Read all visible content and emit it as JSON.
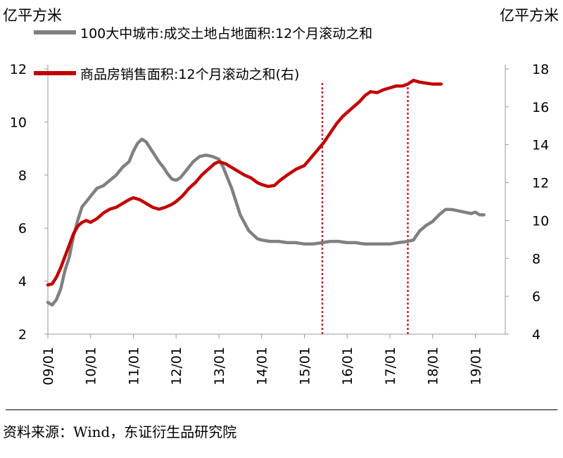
{
  "unit_left": "亿平方米",
  "unit_right": "亿平方米",
  "source": "资料来源：Wind，东证衍生品研究院",
  "chart_data": {
    "type": "line",
    "x_ticks": [
      "09/01",
      "10/01",
      "11/01",
      "12/01",
      "13/01",
      "14/01",
      "15/01",
      "16/01",
      "17/01",
      "18/01",
      "19/01"
    ],
    "y_left": {
      "ticks": [
        "2",
        "4",
        "6",
        "8",
        "10",
        "12"
      ],
      "range": [
        2,
        12
      ]
    },
    "y_right": {
      "ticks": [
        "4",
        "6",
        "8",
        "10",
        "12",
        "14",
        "16",
        "18"
      ],
      "range": [
        4,
        18
      ]
    },
    "vlines": [
      {
        "x": 2015.42,
        "color": "#d0212b"
      },
      {
        "x": 2017.42,
        "color": "#d0212b"
      }
    ],
    "series": [
      {
        "name": "100大中城市:成交土地占地面积:12个月滚动之和",
        "color": "#808080",
        "axis": "left",
        "points": [
          [
            2009.0,
            3.2
          ],
          [
            2009.1,
            3.1
          ],
          [
            2009.2,
            3.3
          ],
          [
            2009.3,
            3.7
          ],
          [
            2009.4,
            4.4
          ],
          [
            2009.5,
            4.9
          ],
          [
            2009.6,
            5.7
          ],
          [
            2009.7,
            6.3
          ],
          [
            2009.8,
            6.8
          ],
          [
            2009.9,
            7.0
          ],
          [
            2010.0,
            7.2
          ],
          [
            2010.15,
            7.5
          ],
          [
            2010.3,
            7.6
          ],
          [
            2010.45,
            7.8
          ],
          [
            2010.6,
            8.0
          ],
          [
            2010.75,
            8.3
          ],
          [
            2010.9,
            8.5
          ],
          [
            2011.0,
            8.9
          ],
          [
            2011.1,
            9.2
          ],
          [
            2011.2,
            9.35
          ],
          [
            2011.3,
            9.25
          ],
          [
            2011.4,
            9.0
          ],
          [
            2011.5,
            8.75
          ],
          [
            2011.6,
            8.5
          ],
          [
            2011.7,
            8.3
          ],
          [
            2011.8,
            8.05
          ],
          [
            2011.9,
            7.85
          ],
          [
            2012.0,
            7.8
          ],
          [
            2012.1,
            7.9
          ],
          [
            2012.25,
            8.2
          ],
          [
            2012.4,
            8.5
          ],
          [
            2012.55,
            8.7
          ],
          [
            2012.7,
            8.75
          ],
          [
            2012.85,
            8.7
          ],
          [
            2013.0,
            8.6
          ],
          [
            2013.1,
            8.3
          ],
          [
            2013.2,
            7.9
          ],
          [
            2013.3,
            7.5
          ],
          [
            2013.4,
            7.0
          ],
          [
            2013.5,
            6.5
          ],
          [
            2013.6,
            6.2
          ],
          [
            2013.7,
            5.9
          ],
          [
            2013.8,
            5.75
          ],
          [
            2013.9,
            5.6
          ],
          [
            2014.0,
            5.55
          ],
          [
            2014.2,
            5.5
          ],
          [
            2014.4,
            5.5
          ],
          [
            2014.6,
            5.45
          ],
          [
            2014.8,
            5.45
          ],
          [
            2015.0,
            5.4
          ],
          [
            2015.2,
            5.4
          ],
          [
            2015.42,
            5.45
          ],
          [
            2015.6,
            5.5
          ],
          [
            2015.8,
            5.5
          ],
          [
            2016.0,
            5.45
          ],
          [
            2016.2,
            5.45
          ],
          [
            2016.4,
            5.4
          ],
          [
            2016.6,
            5.4
          ],
          [
            2016.8,
            5.4
          ],
          [
            2017.0,
            5.4
          ],
          [
            2017.2,
            5.45
          ],
          [
            2017.42,
            5.5
          ],
          [
            2017.55,
            5.55
          ],
          [
            2017.7,
            5.9
          ],
          [
            2017.85,
            6.1
          ],
          [
            2018.0,
            6.25
          ],
          [
            2018.15,
            6.5
          ],
          [
            2018.3,
            6.7
          ],
          [
            2018.45,
            6.7
          ],
          [
            2018.6,
            6.65
          ],
          [
            2018.75,
            6.6
          ],
          [
            2018.9,
            6.55
          ],
          [
            2019.0,
            6.6
          ],
          [
            2019.1,
            6.5
          ],
          [
            2019.2,
            6.5
          ]
        ]
      },
      {
        "name": "商品房销售面积:12个月滚动之和(右)",
        "color": "#c00000",
        "axis": "right",
        "points": [
          [
            2009.0,
            6.6
          ],
          [
            2009.1,
            6.65
          ],
          [
            2009.2,
            7.0
          ],
          [
            2009.3,
            7.5
          ],
          [
            2009.4,
            8.1
          ],
          [
            2009.5,
            8.7
          ],
          [
            2009.6,
            9.3
          ],
          [
            2009.7,
            9.7
          ],
          [
            2009.8,
            9.9
          ],
          [
            2009.9,
            10.0
          ],
          [
            2010.0,
            9.9
          ],
          [
            2010.15,
            10.1
          ],
          [
            2010.3,
            10.4
          ],
          [
            2010.45,
            10.6
          ],
          [
            2010.6,
            10.7
          ],
          [
            2010.75,
            10.9
          ],
          [
            2010.9,
            11.1
          ],
          [
            2011.0,
            11.2
          ],
          [
            2011.15,
            11.1
          ],
          [
            2011.3,
            10.9
          ],
          [
            2011.45,
            10.7
          ],
          [
            2011.6,
            10.6
          ],
          [
            2011.75,
            10.7
          ],
          [
            2011.9,
            10.85
          ],
          [
            2012.0,
            11.0
          ],
          [
            2012.15,
            11.3
          ],
          [
            2012.3,
            11.7
          ],
          [
            2012.45,
            12.0
          ],
          [
            2012.6,
            12.4
          ],
          [
            2012.75,
            12.7
          ],
          [
            2012.9,
            13.0
          ],
          [
            2013.0,
            13.1
          ],
          [
            2013.15,
            13.0
          ],
          [
            2013.3,
            12.8
          ],
          [
            2013.45,
            12.6
          ],
          [
            2013.6,
            12.4
          ],
          [
            2013.75,
            12.25
          ],
          [
            2013.9,
            12.0
          ],
          [
            2014.0,
            11.9
          ],
          [
            2014.15,
            11.8
          ],
          [
            2014.3,
            11.85
          ],
          [
            2014.42,
            12.1
          ],
          [
            2014.6,
            12.4
          ],
          [
            2014.8,
            12.7
          ],
          [
            2015.0,
            12.9
          ],
          [
            2015.15,
            13.3
          ],
          [
            2015.3,
            13.7
          ],
          [
            2015.45,
            14.1
          ],
          [
            2015.6,
            14.6
          ],
          [
            2015.75,
            15.1
          ],
          [
            2015.9,
            15.5
          ],
          [
            2016.0,
            15.7
          ],
          [
            2016.15,
            16.0
          ],
          [
            2016.3,
            16.3
          ],
          [
            2016.42,
            16.6
          ],
          [
            2016.55,
            16.8
          ],
          [
            2016.7,
            16.75
          ],
          [
            2016.85,
            16.9
          ],
          [
            2017.0,
            17.0
          ],
          [
            2017.15,
            17.1
          ],
          [
            2017.3,
            17.1
          ],
          [
            2017.42,
            17.2
          ],
          [
            2017.55,
            17.4
          ],
          [
            2017.7,
            17.3
          ],
          [
            2017.85,
            17.25
          ],
          [
            2018.0,
            17.2
          ],
          [
            2018.1,
            17.2
          ],
          [
            2018.2,
            17.2
          ]
        ]
      }
    ]
  }
}
